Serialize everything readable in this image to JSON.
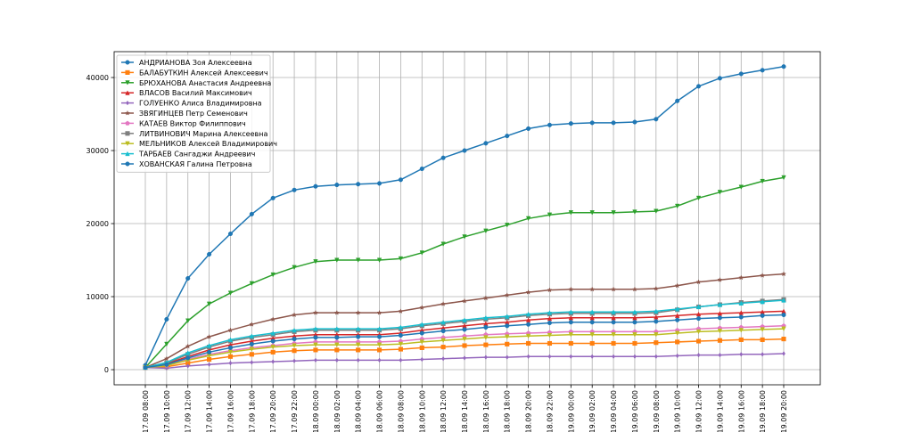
{
  "chart_data": {
    "type": "line",
    "categories": [
      "17.09 08:00",
      "17.09 10:00",
      "17.09 12:00",
      "17.09 14:00",
      "17.09 16:00",
      "17.09 18:00",
      "17.09 20:00",
      "17.09 22:00",
      "18.09 00:00",
      "18.09 02:00",
      "18.09 04:00",
      "18.09 06:00",
      "18.09 08:00",
      "18.09 10:00",
      "18.09 12:00",
      "18.09 14:00",
      "18.09 16:00",
      "18.09 18:00",
      "18.09 20:00",
      "18.09 22:00",
      "19.09 00:00",
      "19.09 02:00",
      "19.09 04:00",
      "19.09 06:00",
      "19.09 08:00",
      "19.09 10:00",
      "19.09 12:00",
      "19.09 14:00",
      "19.09 16:00",
      "19.09 18:00",
      "19.09 20:00"
    ],
    "series": [
      {
        "name": "АНДРИАНОВА Зоя Алексеевна",
        "color": "#1f77b4",
        "marker": "o",
        "values": [
          600,
          6900,
          12500,
          15800,
          18600,
          21300,
          23500,
          24600,
          25100,
          25300,
          25400,
          25500,
          26000,
          27500,
          29000,
          30000,
          31000,
          32000,
          33000,
          33500,
          33700,
          33800,
          33800,
          33900,
          34300,
          36800,
          38800,
          39900,
          40500,
          41000,
          41500
        ]
      },
      {
        "name": "БАЛАБУТКИН Алексей Алексеевич",
        "color": "#ff7f0e",
        "marker": "s",
        "values": [
          300,
          400,
          900,
          1400,
          1800,
          2100,
          2400,
          2600,
          2700,
          2700,
          2700,
          2700,
          2800,
          3000,
          3100,
          3300,
          3400,
          3500,
          3600,
          3600,
          3600,
          3600,
          3600,
          3600,
          3700,
          3800,
          3900,
          4000,
          4100,
          4100,
          4200
        ]
      },
      {
        "name": "БРЮХАНОВА Анастасия Андреевна",
        "color": "#2ca02c",
        "marker": "v",
        "values": [
          300,
          3500,
          6700,
          9000,
          10500,
          11800,
          13000,
          14000,
          14800,
          15000,
          15000,
          15000,
          15200,
          16000,
          17200,
          18200,
          19000,
          19800,
          20700,
          21200,
          21500,
          21500,
          21500,
          21600,
          21700,
          22400,
          23500,
          24300,
          25000,
          25800,
          26300
        ]
      },
      {
        "name": "ВЛАСОВ Василий Максимович",
        "color": "#d62728",
        "marker": "^",
        "values": [
          300,
          800,
          1800,
          2700,
          3400,
          3900,
          4300,
          4600,
          4800,
          4800,
          4800,
          4800,
          5000,
          5400,
          5700,
          6000,
          6300,
          6500,
          6800,
          7000,
          7100,
          7100,
          7100,
          7100,
          7200,
          7400,
          7600,
          7700,
          7800,
          7900,
          8000
        ]
      },
      {
        "name": "ГОЛУЕНКО Алиса Владимировна",
        "color": "#9467bd",
        "marker": "d",
        "values": [
          300,
          200,
          500,
          700,
          900,
          1000,
          1100,
          1200,
          1300,
          1300,
          1300,
          1300,
          1300,
          1400,
          1500,
          1600,
          1700,
          1700,
          1800,
          1800,
          1800,
          1800,
          1800,
          1800,
          1800,
          1900,
          2000,
          2000,
          2100,
          2100,
          2200
        ]
      },
      {
        "name": "ЗВЯГИНЦЕВ Петр Семенович",
        "color": "#8c564b",
        "marker": "*",
        "values": [
          300,
          1500,
          3200,
          4500,
          5400,
          6200,
          6900,
          7500,
          7800,
          7800,
          7800,
          7800,
          8000,
          8500,
          9000,
          9400,
          9800,
          10200,
          10600,
          10900,
          11000,
          11000,
          11000,
          11000,
          11100,
          11500,
          12000,
          12300,
          12600,
          12900,
          13100
        ]
      },
      {
        "name": "КАТАЕВ Виктор Филиппович",
        "color": "#e377c2",
        "marker": "p",
        "values": [
          300,
          600,
          1400,
          2100,
          2600,
          3000,
          3300,
          3600,
          3800,
          3800,
          3800,
          3800,
          3900,
          4200,
          4400,
          4600,
          4800,
          4900,
          5000,
          5100,
          5200,
          5200,
          5200,
          5200,
          5200,
          5400,
          5600,
          5700,
          5800,
          5900,
          6000
        ]
      },
      {
        "name": "ЛИТВИНОВИЧ Марина Алексеевна",
        "color": "#7f7f7f",
        "marker": "s",
        "values": [
          300,
          900,
          2100,
          3100,
          3900,
          4400,
          4800,
          5200,
          5400,
          5400,
          5400,
          5400,
          5600,
          6000,
          6300,
          6600,
          6900,
          7100,
          7400,
          7600,
          7700,
          7700,
          7700,
          7700,
          7800,
          8200,
          8600,
          8900,
          9200,
          9400,
          9600
        ]
      },
      {
        "name": "МЕЛЬНИКОВ Алексей Владимирович",
        "color": "#bcbd22",
        "marker": "v",
        "values": [
          300,
          550,
          1300,
          1900,
          2400,
          2800,
          3100,
          3300,
          3400,
          3400,
          3400,
          3400,
          3500,
          3800,
          4000,
          4200,
          4400,
          4500,
          4600,
          4700,
          4800,
          4800,
          4800,
          4800,
          4800,
          5000,
          5200,
          5300,
          5400,
          5500,
          5600
        ]
      },
      {
        "name": "ТАРБАЕВ Сангаджи Андреевич",
        "color": "#17becf",
        "marker": "^",
        "values": [
          300,
          1000,
          2300,
          3300,
          4100,
          4600,
          5000,
          5400,
          5600,
          5600,
          5600,
          5600,
          5800,
          6200,
          6500,
          6800,
          7100,
          7300,
          7600,
          7800,
          7900,
          7900,
          7900,
          7900,
          8000,
          8300,
          8600,
          8900,
          9100,
          9300,
          9500
        ]
      },
      {
        "name": "ХОВАНСКАЯ Галина Петровна",
        "color": "#1f77b4",
        "marker": "o",
        "values": [
          300,
          700,
          1600,
          2400,
          3000,
          3500,
          3900,
          4200,
          4400,
          4400,
          4500,
          4500,
          4700,
          5000,
          5300,
          5500,
          5800,
          6000,
          6200,
          6400,
          6500,
          6500,
          6500,
          6500,
          6600,
          6800,
          7000,
          7100,
          7200,
          7400,
          7500
        ]
      }
    ],
    "ylim": [
      -2070,
      43540
    ],
    "yticks": [
      0,
      10000,
      20000,
      30000,
      40000
    ],
    "grid": true,
    "legend": "upper left"
  }
}
